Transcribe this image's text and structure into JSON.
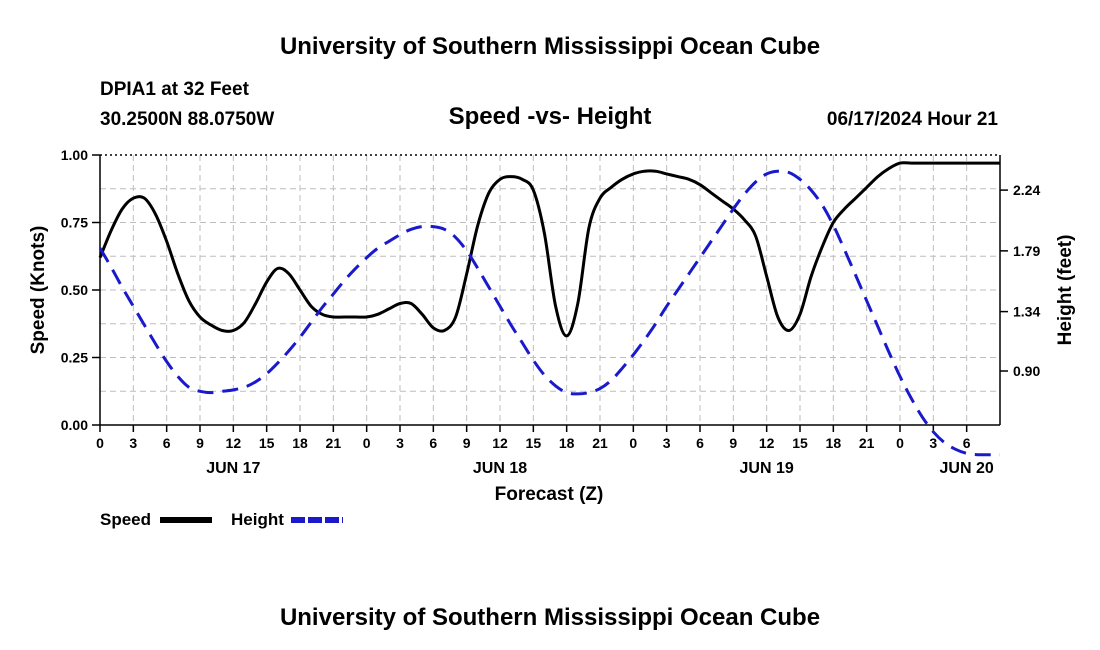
{
  "header": {
    "title": "University of Southern Mississippi Ocean Cube",
    "station": "DPIA1 at 32 Feet",
    "coords": "30.2500N  88.0750W",
    "chart_title": "Speed -vs- Height",
    "datetime": "06/17/2024 Hour 21"
  },
  "footer": {
    "title": "University of Southern Mississippi Ocean Cube"
  },
  "chart_data": {
    "type": "line",
    "title": "Speed -vs- Height",
    "xlabel": "Forecast (Z)",
    "ylabel": "Speed (Knots)",
    "y2label": "Height (feet)",
    "x_range_hours": [
      0,
      81
    ],
    "ylim": [
      0,
      1.0
    ],
    "y2lim": [
      0.5,
      2.5
    ],
    "y_ticks": [
      "0.00",
      "0.25",
      "0.50",
      "0.75",
      "1.00"
    ],
    "y2_ticks": [
      {
        "value": 0.9,
        "label": "0.90"
      },
      {
        "value": 1.34,
        "label": "1.34"
      },
      {
        "value": 1.79,
        "label": "1.79"
      },
      {
        "value": 2.24,
        "label": "2.24"
      }
    ],
    "x_tick_labels": [
      "0",
      "3",
      "6",
      "9",
      "12",
      "15",
      "18",
      "21",
      "0",
      "3",
      "6",
      "9",
      "12",
      "15",
      "18",
      "21",
      "0",
      "3",
      "6",
      "9",
      "12",
      "15",
      "18",
      "21",
      "0",
      "3",
      "6"
    ],
    "date_labels": [
      {
        "hour": 12,
        "label": "JUN 17"
      },
      {
        "hour": 36,
        "label": "JUN 18"
      },
      {
        "hour": 60,
        "label": "JUN 19"
      },
      {
        "hour": 78,
        "label": "JUN 20"
      }
    ],
    "grid": true,
    "legend": [
      {
        "name": "Speed",
        "color": "#000000",
        "dash": "solid"
      },
      {
        "name": "Height",
        "color": "#1a1acc",
        "dash": "dashed"
      }
    ],
    "series": [
      {
        "name": "Speed",
        "axis": "left",
        "color": "#000000",
        "x": [
          0,
          1,
          2,
          3,
          4,
          5,
          6,
          7,
          8,
          9,
          10,
          11,
          12,
          13,
          14,
          15,
          16,
          17,
          18,
          19,
          20,
          21,
          22,
          23,
          24,
          25,
          26,
          27,
          28,
          29,
          30,
          31,
          32,
          33,
          34,
          35,
          36,
          37,
          38,
          39,
          40,
          41,
          42,
          43,
          44,
          45,
          46,
          47,
          48,
          49,
          50,
          51,
          52,
          53,
          54,
          55,
          56,
          57,
          58,
          59,
          60,
          61,
          62,
          63,
          64,
          65,
          66,
          67,
          68,
          69,
          70,
          71,
          72,
          73,
          74,
          75,
          76,
          77,
          78,
          79,
          80,
          81
        ],
        "values": [
          0.62,
          0.72,
          0.8,
          0.84,
          0.84,
          0.78,
          0.68,
          0.56,
          0.46,
          0.4,
          0.37,
          0.35,
          0.35,
          0.38,
          0.45,
          0.53,
          0.58,
          0.56,
          0.5,
          0.44,
          0.41,
          0.4,
          0.4,
          0.4,
          0.4,
          0.41,
          0.43,
          0.45,
          0.45,
          0.41,
          0.36,
          0.35,
          0.4,
          0.56,
          0.74,
          0.86,
          0.91,
          0.92,
          0.91,
          0.87,
          0.71,
          0.44,
          0.33,
          0.45,
          0.73,
          0.84,
          0.88,
          0.91,
          0.93,
          0.94,
          0.94,
          0.93,
          0.92,
          0.91,
          0.89,
          0.86,
          0.83,
          0.8,
          0.76,
          0.7,
          0.55,
          0.4,
          0.35,
          0.41,
          0.55,
          0.66,
          0.75,
          0.8,
          0.84,
          0.88,
          0.92,
          0.95,
          0.97,
          0.97,
          0.97,
          0.97,
          0.97,
          0.97,
          0.97,
          0.97,
          0.97,
          0.97
        ]
      },
      {
        "name": "Height",
        "axis": "right",
        "color": "#1a1acc",
        "x": [
          0,
          1,
          2,
          3,
          4,
          5,
          6,
          7,
          8,
          9,
          10,
          11,
          12,
          13,
          14,
          15,
          16,
          17,
          18,
          19,
          20,
          21,
          22,
          23,
          24,
          25,
          26,
          27,
          28,
          29,
          30,
          31,
          32,
          33,
          34,
          35,
          36,
          37,
          38,
          39,
          40,
          41,
          42,
          43,
          44,
          45,
          46,
          47,
          48,
          49,
          50,
          51,
          52,
          53,
          54,
          55,
          56,
          57,
          58,
          59,
          60,
          61,
          62,
          63,
          64,
          65,
          66,
          67,
          68,
          69,
          70,
          71,
          72,
          73,
          74,
          75,
          76,
          77,
          78,
          79,
          80,
          81
        ],
        "values": [
          1.81,
          1.67,
          1.52,
          1.38,
          1.24,
          1.1,
          0.97,
          0.86,
          0.78,
          0.75,
          0.74,
          0.75,
          0.76,
          0.78,
          0.82,
          0.88,
          0.96,
          1.05,
          1.15,
          1.26,
          1.37,
          1.47,
          1.57,
          1.66,
          1.74,
          1.81,
          1.86,
          1.91,
          1.95,
          1.97,
          1.97,
          1.95,
          1.89,
          1.79,
          1.66,
          1.52,
          1.38,
          1.24,
          1.11,
          0.98,
          0.87,
          0.79,
          0.74,
          0.73,
          0.74,
          0.77,
          0.83,
          0.92,
          1.02,
          1.13,
          1.25,
          1.38,
          1.5,
          1.62,
          1.74,
          1.86,
          1.98,
          2.1,
          2.21,
          2.3,
          2.36,
          2.38,
          2.37,
          2.32,
          2.24,
          2.13,
          1.98,
          1.8,
          1.61,
          1.42,
          1.23,
          1.04,
          0.86,
          0.7,
          0.56,
          0.45,
          0.37,
          0.32,
          0.29,
          0.28,
          0.28,
          0.28
        ]
      }
    ]
  }
}
